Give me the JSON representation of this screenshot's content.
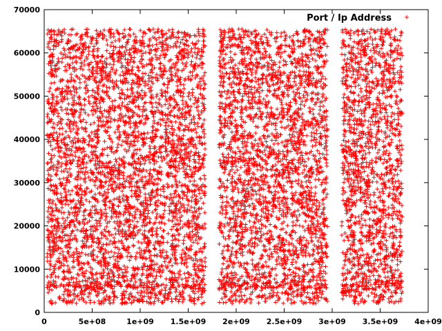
{
  "chart_data": {
    "type": "scatter",
    "title": "",
    "xlabel": "",
    "ylabel": "",
    "xlim": [
      0,
      4000000000
    ],
    "ylim": [
      0,
      70000
    ],
    "x_ticks": [
      {
        "value": 0,
        "label": "0"
      },
      {
        "value": 500000000,
        "label": "5e+08"
      },
      {
        "value": 1000000000,
        "label": "1e+09"
      },
      {
        "value": 1500000000,
        "label": "1.5e+09"
      },
      {
        "value": 2000000000,
        "label": "2e+09"
      },
      {
        "value": 2500000000,
        "label": "2.5e+09"
      },
      {
        "value": 3000000000,
        "label": "3e+09"
      },
      {
        "value": 3500000000,
        "label": "3.5e+09"
      },
      {
        "value": 4000000000,
        "label": "4e+09"
      }
    ],
    "y_ticks": [
      {
        "value": 0,
        "label": "0"
      },
      {
        "value": 10000,
        "label": "10000"
      },
      {
        "value": 20000,
        "label": "20000"
      },
      {
        "value": 30000,
        "label": "30000"
      },
      {
        "value": 40000,
        "label": "40000"
      },
      {
        "value": 50000,
        "label": "50000"
      },
      {
        "value": 60000,
        "label": "60000"
      },
      {
        "value": 70000,
        "label": "70000"
      }
    ],
    "grid": false,
    "legend_position": "top-right",
    "series": [
      {
        "name": "Port / Ip Address",
        "marker": "plus",
        "color": "#ff0000",
        "x_ranges": [
          [
            30000000,
            1680000000
          ],
          [
            1820000000,
            2950000000
          ],
          [
            3100000000,
            3730000000
          ]
        ],
        "y_range": [
          2000,
          65535
        ]
      }
    ]
  }
}
